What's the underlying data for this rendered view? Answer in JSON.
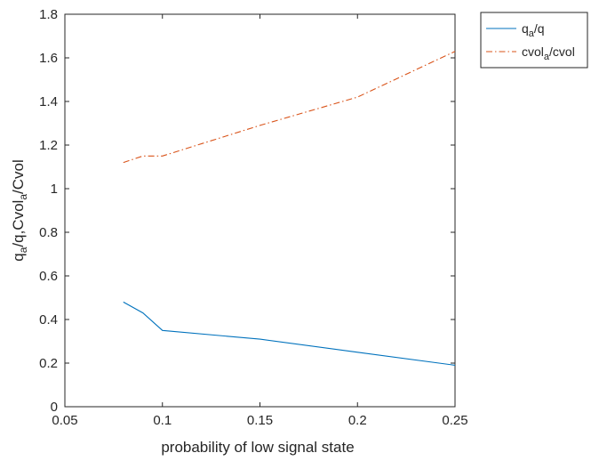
{
  "chart_data": {
    "type": "line",
    "xlabel": "probability of low signal state",
    "ylabel": {
      "parts": [
        {
          "text": "q",
          "sub": false
        },
        {
          "text": "a",
          "sub": true
        },
        {
          "text": "/q,Cvol",
          "sub": false
        },
        {
          "text": "a",
          "sub": true
        },
        {
          "text": "/Cvol",
          "sub": false
        }
      ]
    },
    "xlim": [
      0.05,
      0.25
    ],
    "ylim": [
      0,
      1.8
    ],
    "xticks": [
      0.05,
      0.1,
      0.15,
      0.2,
      0.25
    ],
    "xtick_labels": [
      "0.05",
      "0.1",
      "0.15",
      "0.2",
      "0.25"
    ],
    "yticks": [
      0,
      0.2,
      0.4,
      0.6,
      0.8,
      1,
      1.2,
      1.4,
      1.6,
      1.8
    ],
    "ytick_labels": [
      "0",
      "0.2",
      "0.4",
      "0.6",
      "0.8",
      "1",
      "1.2",
      "1.4",
      "1.6",
      "1.8"
    ],
    "grid": false,
    "legend_position": "outside-top-right",
    "series": [
      {
        "name_parts": [
          {
            "text": "q",
            "sub": false
          },
          {
            "text": "a",
            "sub": true
          },
          {
            "text": "/q",
            "sub": false
          }
        ],
        "color": "#0072BD",
        "style": "solid",
        "x": [
          0.08,
          0.09,
          0.1,
          0.15,
          0.2,
          0.25
        ],
        "y": [
          0.48,
          0.43,
          0.35,
          0.31,
          0.25,
          0.19
        ]
      },
      {
        "name_parts": [
          {
            "text": "cvol",
            "sub": false
          },
          {
            "text": "a",
            "sub": true
          },
          {
            "text": "/cvol",
            "sub": false
          }
        ],
        "color": "#D95319",
        "style": "dashdot",
        "x": [
          0.08,
          0.09,
          0.1,
          0.15,
          0.2,
          0.25
        ],
        "y": [
          1.12,
          1.15,
          1.15,
          1.29,
          1.42,
          1.63
        ]
      }
    ]
  }
}
